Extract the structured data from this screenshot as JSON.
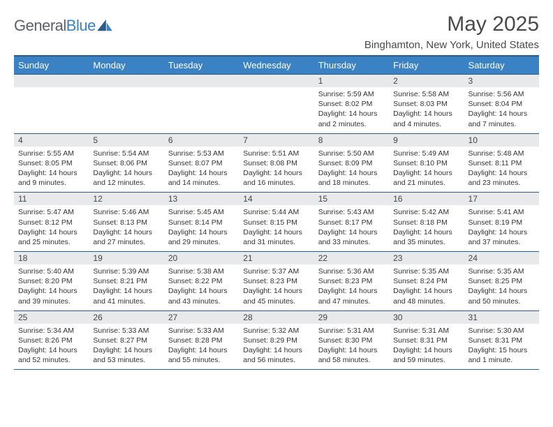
{
  "brand": {
    "part1": "General",
    "part2": "Blue"
  },
  "title": "May 2025",
  "location": "Binghamton, New York, United States",
  "colors": {
    "header_bg": "#3b82c4",
    "header_border": "#2a5b8a",
    "daynum_bg": "#e8e9ea",
    "text": "#333333",
    "title_text": "#4a4a4a"
  },
  "day_headers": [
    "Sunday",
    "Monday",
    "Tuesday",
    "Wednesday",
    "Thursday",
    "Friday",
    "Saturday"
  ],
  "weeks": [
    [
      {
        "n": "",
        "d": []
      },
      {
        "n": "",
        "d": []
      },
      {
        "n": "",
        "d": []
      },
      {
        "n": "",
        "d": []
      },
      {
        "n": "1",
        "d": [
          "Sunrise: 5:59 AM",
          "Sunset: 8:02 PM",
          "Daylight: 14 hours and 2 minutes."
        ]
      },
      {
        "n": "2",
        "d": [
          "Sunrise: 5:58 AM",
          "Sunset: 8:03 PM",
          "Daylight: 14 hours and 4 minutes."
        ]
      },
      {
        "n": "3",
        "d": [
          "Sunrise: 5:56 AM",
          "Sunset: 8:04 PM",
          "Daylight: 14 hours and 7 minutes."
        ]
      }
    ],
    [
      {
        "n": "4",
        "d": [
          "Sunrise: 5:55 AM",
          "Sunset: 8:05 PM",
          "Daylight: 14 hours and 9 minutes."
        ]
      },
      {
        "n": "5",
        "d": [
          "Sunrise: 5:54 AM",
          "Sunset: 8:06 PM",
          "Daylight: 14 hours and 12 minutes."
        ]
      },
      {
        "n": "6",
        "d": [
          "Sunrise: 5:53 AM",
          "Sunset: 8:07 PM",
          "Daylight: 14 hours and 14 minutes."
        ]
      },
      {
        "n": "7",
        "d": [
          "Sunrise: 5:51 AM",
          "Sunset: 8:08 PM",
          "Daylight: 14 hours and 16 minutes."
        ]
      },
      {
        "n": "8",
        "d": [
          "Sunrise: 5:50 AM",
          "Sunset: 8:09 PM",
          "Daylight: 14 hours and 18 minutes."
        ]
      },
      {
        "n": "9",
        "d": [
          "Sunrise: 5:49 AM",
          "Sunset: 8:10 PM",
          "Daylight: 14 hours and 21 minutes."
        ]
      },
      {
        "n": "10",
        "d": [
          "Sunrise: 5:48 AM",
          "Sunset: 8:11 PM",
          "Daylight: 14 hours and 23 minutes."
        ]
      }
    ],
    [
      {
        "n": "11",
        "d": [
          "Sunrise: 5:47 AM",
          "Sunset: 8:12 PM",
          "Daylight: 14 hours and 25 minutes."
        ]
      },
      {
        "n": "12",
        "d": [
          "Sunrise: 5:46 AM",
          "Sunset: 8:13 PM",
          "Daylight: 14 hours and 27 minutes."
        ]
      },
      {
        "n": "13",
        "d": [
          "Sunrise: 5:45 AM",
          "Sunset: 8:14 PM",
          "Daylight: 14 hours and 29 minutes."
        ]
      },
      {
        "n": "14",
        "d": [
          "Sunrise: 5:44 AM",
          "Sunset: 8:15 PM",
          "Daylight: 14 hours and 31 minutes."
        ]
      },
      {
        "n": "15",
        "d": [
          "Sunrise: 5:43 AM",
          "Sunset: 8:17 PM",
          "Daylight: 14 hours and 33 minutes."
        ]
      },
      {
        "n": "16",
        "d": [
          "Sunrise: 5:42 AM",
          "Sunset: 8:18 PM",
          "Daylight: 14 hours and 35 minutes."
        ]
      },
      {
        "n": "17",
        "d": [
          "Sunrise: 5:41 AM",
          "Sunset: 8:19 PM",
          "Daylight: 14 hours and 37 minutes."
        ]
      }
    ],
    [
      {
        "n": "18",
        "d": [
          "Sunrise: 5:40 AM",
          "Sunset: 8:20 PM",
          "Daylight: 14 hours and 39 minutes."
        ]
      },
      {
        "n": "19",
        "d": [
          "Sunrise: 5:39 AM",
          "Sunset: 8:21 PM",
          "Daylight: 14 hours and 41 minutes."
        ]
      },
      {
        "n": "20",
        "d": [
          "Sunrise: 5:38 AM",
          "Sunset: 8:22 PM",
          "Daylight: 14 hours and 43 minutes."
        ]
      },
      {
        "n": "21",
        "d": [
          "Sunrise: 5:37 AM",
          "Sunset: 8:23 PM",
          "Daylight: 14 hours and 45 minutes."
        ]
      },
      {
        "n": "22",
        "d": [
          "Sunrise: 5:36 AM",
          "Sunset: 8:23 PM",
          "Daylight: 14 hours and 47 minutes."
        ]
      },
      {
        "n": "23",
        "d": [
          "Sunrise: 5:35 AM",
          "Sunset: 8:24 PM",
          "Daylight: 14 hours and 48 minutes."
        ]
      },
      {
        "n": "24",
        "d": [
          "Sunrise: 5:35 AM",
          "Sunset: 8:25 PM",
          "Daylight: 14 hours and 50 minutes."
        ]
      }
    ],
    [
      {
        "n": "25",
        "d": [
          "Sunrise: 5:34 AM",
          "Sunset: 8:26 PM",
          "Daylight: 14 hours and 52 minutes."
        ]
      },
      {
        "n": "26",
        "d": [
          "Sunrise: 5:33 AM",
          "Sunset: 8:27 PM",
          "Daylight: 14 hours and 53 minutes."
        ]
      },
      {
        "n": "27",
        "d": [
          "Sunrise: 5:33 AM",
          "Sunset: 8:28 PM",
          "Daylight: 14 hours and 55 minutes."
        ]
      },
      {
        "n": "28",
        "d": [
          "Sunrise: 5:32 AM",
          "Sunset: 8:29 PM",
          "Daylight: 14 hours and 56 minutes."
        ]
      },
      {
        "n": "29",
        "d": [
          "Sunrise: 5:31 AM",
          "Sunset: 8:30 PM",
          "Daylight: 14 hours and 58 minutes."
        ]
      },
      {
        "n": "30",
        "d": [
          "Sunrise: 5:31 AM",
          "Sunset: 8:31 PM",
          "Daylight: 14 hours and 59 minutes."
        ]
      },
      {
        "n": "31",
        "d": [
          "Sunrise: 5:30 AM",
          "Sunset: 8:31 PM",
          "Daylight: 15 hours and 1 minute."
        ]
      }
    ]
  ]
}
